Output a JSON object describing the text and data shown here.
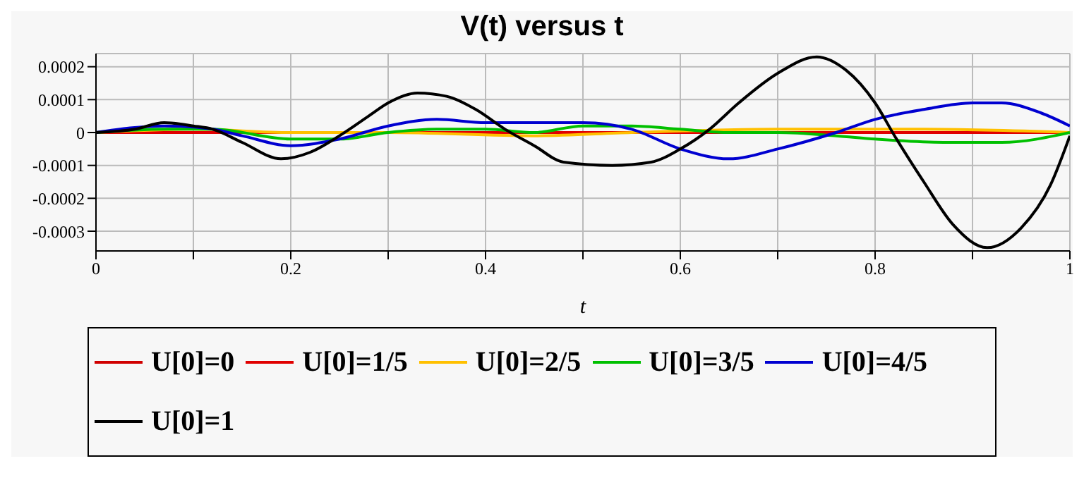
{
  "chart_data": {
    "type": "line",
    "title": "V(t) versus t",
    "xlabel": "t",
    "xlim": [
      0,
      1
    ],
    "xticks": [
      0,
      {
        "value": 0.1,
        "label": null
      },
      0.2,
      {
        "value": 0.3,
        "label": null
      },
      0.4,
      {
        "value": 0.5,
        "label": null
      },
      0.6,
      {
        "value": 0.7,
        "label": null
      },
      0.8,
      {
        "value": 0.9,
        "label": null
      },
      1
    ],
    "ylim": [
      -0.00036,
      0.00024
    ],
    "yticks": [
      -0.0003,
      -0.0002,
      -0.0001,
      0,
      0.0001,
      0.0002
    ],
    "grid": true,
    "legend": "bottom",
    "marker": "none",
    "line_style": "solid",
    "series": [
      {
        "name": "U[0]=0",
        "color": "#d00000",
        "x": [
          0,
          0.5,
          1
        ],
        "values": [
          0,
          0,
          0
        ]
      },
      {
        "name": "U[0]=1/5",
        "color": "#e00000",
        "x": [
          0,
          0.5,
          1
        ],
        "values": [
          0,
          0,
          0
        ]
      },
      {
        "name": "U[0]=2/5",
        "color": "#ffc000",
        "x": [
          0,
          0.1,
          0.2,
          0.3,
          0.45,
          0.55,
          0.7,
          0.85,
          1
        ],
        "values": [
          0,
          1e-05,
          0,
          0,
          -1e-05,
          0,
          1e-05,
          1e-05,
          0
        ]
      },
      {
        "name": "U[0]=3/5",
        "color": "#00c000",
        "x": [
          0,
          0.07,
          0.12,
          0.2,
          0.25,
          0.3,
          0.35,
          0.4,
          0.45,
          0.5,
          0.55,
          0.6,
          0.65,
          0.7,
          0.76,
          0.8,
          0.87,
          0.93,
          1
        ],
        "values": [
          0,
          1e-05,
          1e-05,
          -2e-05,
          -2e-05,
          0,
          1e-05,
          1e-05,
          0,
          2e-05,
          2e-05,
          1e-05,
          0,
          0,
          -1e-05,
          -2e-05,
          -3e-05,
          -3e-05,
          0
        ]
      },
      {
        "name": "U[0]=4/5",
        "color": "#0000d0",
        "x": [
          0,
          0.07,
          0.12,
          0.15,
          0.2,
          0.25,
          0.3,
          0.35,
          0.4,
          0.45,
          0.5,
          0.55,
          0.6,
          0.65,
          0.7,
          0.76,
          0.8,
          0.85,
          0.9,
          0.93,
          0.97,
          1
        ],
        "values": [
          0,
          2e-05,
          1e-05,
          -1e-05,
          -4e-05,
          -2e-05,
          2e-05,
          4e-05,
          3e-05,
          3e-05,
          3e-05,
          1e-05,
          -5e-05,
          -8e-05,
          -5e-05,
          0,
          4e-05,
          7e-05,
          9e-05,
          9e-05,
          6e-05,
          2e-05
        ]
      },
      {
        "name": "U[0]=1",
        "color": "#000000",
        "x": [
          0,
          0.04,
          0.07,
          0.1,
          0.12,
          0.15,
          0.19,
          0.22,
          0.25,
          0.28,
          0.3,
          0.33,
          0.36,
          0.39,
          0.42,
          0.45,
          0.48,
          0.53,
          0.57,
          0.6,
          0.63,
          0.66,
          0.7,
          0.74,
          0.77,
          0.8,
          0.82,
          0.85,
          0.88,
          0.915,
          0.95,
          0.98,
          1
        ],
        "values": [
          0,
          1e-05,
          3e-05,
          2e-05,
          1e-05,
          -3e-05,
          -8e-05,
          -6e-05,
          -1e-05,
          5e-05,
          9e-05,
          0.00012,
          0.00011,
          7e-05,
          1e-05,
          -4e-05,
          -9e-05,
          -0.0001,
          -9e-05,
          -5e-05,
          1e-05,
          9e-05,
          0.00018,
          0.00023,
          0.00019,
          9e-05,
          -1e-05,
          -0.00015,
          -0.00028,
          -0.00035,
          -0.00029,
          -0.00016,
          -1e-05
        ]
      }
    ]
  }
}
